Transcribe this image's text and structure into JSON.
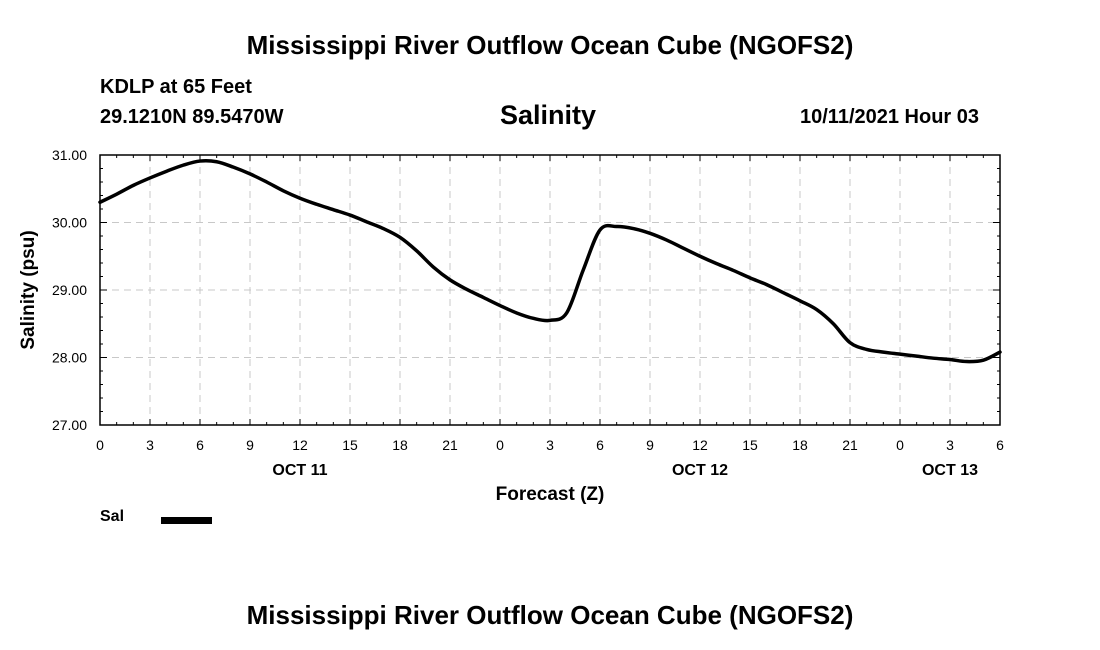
{
  "header": {
    "main_title": "Mississippi River Outflow Ocean Cube (NGOFS2)",
    "station": "KDLP at 65 Feet",
    "coords": "29.1210N  89.5470W",
    "variable": "Salinity",
    "run_time": "10/11/2021 Hour 03",
    "footer_title": "Mississippi River Outflow Ocean Cube (NGOFS2)"
  },
  "legend": {
    "label": "Sal"
  },
  "chart_data": {
    "type": "line",
    "title": "Salinity",
    "xlabel": "Forecast (Z)",
    "ylabel": "Salinity (psu)",
    "ylim": [
      27.0,
      31.0
    ],
    "xlim": [
      0,
      54
    ],
    "grid": true,
    "legend_position": "bottom-left",
    "x_tick_values": [
      0,
      3,
      6,
      9,
      12,
      15,
      18,
      21,
      24,
      27,
      30,
      33,
      36,
      39,
      42,
      45,
      48,
      51,
      54
    ],
    "x_tick_labels": [
      "0",
      "3",
      "6",
      "9",
      "12",
      "15",
      "18",
      "21",
      "0",
      "3",
      "6",
      "9",
      "12",
      "15",
      "18",
      "21",
      "0",
      "3",
      "6"
    ],
    "date_labels": [
      {
        "x": 12,
        "label": "OCT 11"
      },
      {
        "x": 36,
        "label": "OCT 12"
      },
      {
        "x": 51,
        "label": "OCT 13"
      }
    ],
    "y_ticks": [
      27.0,
      28.0,
      29.0,
      30.0,
      31.0
    ],
    "y_tick_labels": [
      "27.00",
      "28.00",
      "29.00",
      "30.00",
      "31.00"
    ],
    "series": [
      {
        "name": "Sal",
        "color": "#000000",
        "x": [
          0,
          1,
          2,
          3,
          4,
          5,
          6,
          7,
          8,
          9,
          10,
          11,
          12,
          13,
          14,
          15,
          16,
          17,
          18,
          19,
          20,
          21,
          22,
          23,
          24,
          25,
          26,
          27,
          28,
          29,
          30,
          31,
          32,
          33,
          34,
          35,
          36,
          37,
          38,
          39,
          40,
          41,
          42,
          43,
          44,
          45,
          46,
          47,
          48,
          49,
          50,
          51,
          52,
          53,
          54
        ],
        "values": [
          30.3,
          30.42,
          30.55,
          30.66,
          30.76,
          30.85,
          30.91,
          30.9,
          30.82,
          30.72,
          30.6,
          30.47,
          30.36,
          30.27,
          30.19,
          30.11,
          30.01,
          29.91,
          29.78,
          29.58,
          29.34,
          29.15,
          29.01,
          28.89,
          28.77,
          28.66,
          28.58,
          28.55,
          28.66,
          29.3,
          29.89,
          29.94,
          29.91,
          29.84,
          29.74,
          29.62,
          29.5,
          29.39,
          29.29,
          29.18,
          29.08,
          28.96,
          28.84,
          28.71,
          28.5,
          28.22,
          28.12,
          28.08,
          28.05,
          28.02,
          27.99,
          27.97,
          27.94,
          27.96,
          28.08
        ]
      }
    ]
  }
}
